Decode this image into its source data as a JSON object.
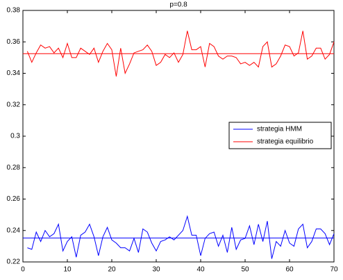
{
  "chart_data": {
    "type": "line",
    "title": "p=0.8",
    "x": [
      1,
      2,
      3,
      4,
      5,
      6,
      7,
      8,
      9,
      10,
      11,
      12,
      13,
      14,
      15,
      16,
      17,
      18,
      19,
      20,
      21,
      22,
      23,
      24,
      25,
      26,
      27,
      28,
      29,
      30,
      31,
      32,
      33,
      34,
      35,
      36,
      37,
      38,
      39,
      40,
      41,
      42,
      43,
      44,
      45,
      46,
      47,
      48,
      49,
      50,
      51,
      52,
      53,
      54,
      55,
      56,
      57,
      58,
      59,
      60,
      61,
      62,
      63,
      64,
      65,
      66,
      67,
      68,
      69,
      70
    ],
    "series": [
      {
        "name": "strategia HMM",
        "color": "#0000ff",
        "values": [
          0.229,
          0.228,
          0.239,
          0.233,
          0.24,
          0.236,
          0.238,
          0.244,
          0.227,
          0.233,
          0.236,
          0.223,
          0.237,
          0.239,
          0.244,
          0.236,
          0.224,
          0.236,
          0.242,
          0.234,
          0.232,
          0.229,
          0.229,
          0.227,
          0.235,
          0.226,
          0.241,
          0.239,
          0.232,
          0.227,
          0.233,
          0.234,
          0.236,
          0.234,
          0.237,
          0.24,
          0.249,
          0.237,
          0.237,
          0.224,
          0.235,
          0.238,
          0.239,
          0.23,
          0.237,
          0.226,
          0.242,
          0.228,
          0.234,
          0.235,
          0.243,
          0.231,
          0.244,
          0.233,
          0.246,
          0.222,
          0.233,
          0.23,
          0.24,
          0.232,
          0.23,
          0.241,
          0.244,
          0.229,
          0.233,
          0.241,
          0.241,
          0.238,
          0.231,
          0.238
        ]
      },
      {
        "name": "strategia equilibrio",
        "color": "#ff0000",
        "values": [
          0.354,
          0.347,
          0.353,
          0.358,
          0.356,
          0.357,
          0.353,
          0.356,
          0.35,
          0.359,
          0.35,
          0.35,
          0.356,
          0.354,
          0.352,
          0.356,
          0.347,
          0.354,
          0.359,
          0.355,
          0.338,
          0.356,
          0.34,
          0.346,
          0.353,
          0.354,
          0.355,
          0.358,
          0.354,
          0.345,
          0.347,
          0.352,
          0.35,
          0.353,
          0.347,
          0.352,
          0.367,
          0.355,
          0.355,
          0.357,
          0.344,
          0.359,
          0.357,
          0.351,
          0.349,
          0.351,
          0.351,
          0.35,
          0.346,
          0.347,
          0.345,
          0.347,
          0.344,
          0.357,
          0.36,
          0.344,
          0.346,
          0.351,
          0.358,
          0.357,
          0.351,
          0.353,
          0.367,
          0.349,
          0.351,
          0.356,
          0.356,
          0.349,
          0.352,
          0.36
        ]
      }
    ],
    "hlines": [
      {
        "value": 0.2352,
        "color": "#0000ff"
      },
      {
        "value": 0.3525,
        "color": "#ff0000"
      }
    ],
    "xlim": [
      0,
      70
    ],
    "xticks": [
      0,
      10,
      20,
      30,
      40,
      50,
      60,
      70
    ],
    "ylim": [
      0.22,
      0.38
    ],
    "yticks": [
      0.22,
      0.24,
      0.26,
      0.28,
      0.3,
      0.32,
      0.34,
      0.36,
      0.38
    ]
  }
}
